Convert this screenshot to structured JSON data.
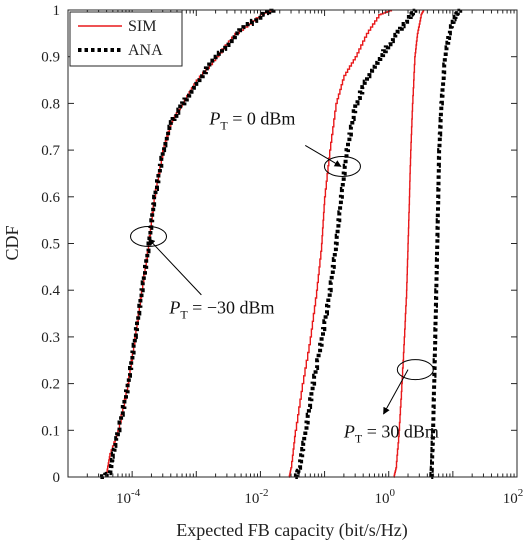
{
  "chart_data": {
    "type": "line",
    "xlabel": "Expected FB capacity (bit/s/Hz)",
    "ylabel": "CDF",
    "xscale": "log",
    "xlim": [
      1e-05,
      100
    ],
    "ylim": [
      0,
      1
    ],
    "grid": false,
    "legend_position": "top-left",
    "xticks": [
      {
        "value": 0.0001,
        "base": "10",
        "exp": "-4"
      },
      {
        "value": 0.01,
        "base": "10",
        "exp": "-2"
      },
      {
        "value": 1,
        "base": "10",
        "exp": "0"
      },
      {
        "value": 100,
        "base": "10",
        "exp": "2"
      }
    ],
    "yticks": [
      "0",
      "0.1",
      "0.2",
      "0.3",
      "0.4",
      "0.5",
      "0.6",
      "0.7",
      "0.8",
      "0.9",
      "1"
    ],
    "series": [
      {
        "name": "SIM",
        "color": "#e8191b",
        "style": "solid",
        "group": "PT = -30 dBm",
        "points": [
          [
            4e-05,
            0
          ],
          [
            4e-05,
            0.01
          ],
          [
            4.5e-05,
            0.05
          ],
          [
            6e-05,
            0.1
          ],
          [
            8.5e-05,
            0.2
          ],
          [
            0.00011,
            0.3
          ],
          [
            0.00014,
            0.4
          ],
          [
            0.00018,
            0.5
          ],
          [
            0.00022,
            0.6
          ],
          [
            0.0003,
            0.7
          ],
          [
            0.0004,
            0.76
          ],
          [
            0.0006,
            0.8
          ],
          [
            0.001,
            0.85
          ],
          [
            0.002,
            0.9
          ],
          [
            0.004,
            0.95
          ],
          [
            0.01,
            0.99
          ],
          [
            0.015,
            1
          ]
        ]
      },
      {
        "name": "ANA",
        "color": "#000000",
        "style": "dotted",
        "group": "PT = -30 dBm",
        "points": [
          [
            3.2e-05,
            0
          ],
          [
            4.5e-05,
            0.01
          ],
          [
            5e-05,
            0.05
          ],
          [
            6e-05,
            0.1
          ],
          [
            8.5e-05,
            0.2
          ],
          [
            0.00011,
            0.3
          ],
          [
            0.00014,
            0.4
          ],
          [
            0.00018,
            0.5
          ],
          [
            0.00022,
            0.6
          ],
          [
            0.0003,
            0.7
          ],
          [
            0.0004,
            0.76
          ],
          [
            0.0006,
            0.8
          ],
          [
            0.001,
            0.85
          ],
          [
            0.002,
            0.9
          ],
          [
            0.004,
            0.95
          ],
          [
            0.01,
            0.99
          ],
          [
            0.016,
            1
          ]
        ]
      },
      {
        "name": "SIM",
        "color": "#e8191b",
        "style": "solid",
        "group": "PT = 0 dBm",
        "points": [
          [
            0.028,
            0
          ],
          [
            0.03,
            0.02
          ],
          [
            0.035,
            0.1
          ],
          [
            0.045,
            0.2
          ],
          [
            0.06,
            0.3
          ],
          [
            0.075,
            0.4
          ],
          [
            0.09,
            0.5
          ],
          [
            0.1,
            0.6
          ],
          [
            0.12,
            0.7
          ],
          [
            0.15,
            0.8
          ],
          [
            0.2,
            0.86
          ],
          [
            0.3,
            0.9
          ],
          [
            0.45,
            0.95
          ],
          [
            0.7,
            0.99
          ],
          [
            1.1,
            1
          ]
        ]
      },
      {
        "name": "ANA",
        "color": "#000000",
        "style": "dotted",
        "group": "PT = 0 dBm",
        "points": [
          [
            0.035,
            0
          ],
          [
            0.04,
            0.02
          ],
          [
            0.05,
            0.1
          ],
          [
            0.065,
            0.2
          ],
          [
            0.09,
            0.3
          ],
          [
            0.12,
            0.4
          ],
          [
            0.15,
            0.5
          ],
          [
            0.18,
            0.6
          ],
          [
            0.22,
            0.7
          ],
          [
            0.3,
            0.8
          ],
          [
            0.5,
            0.87
          ],
          [
            0.9,
            0.92
          ],
          [
            1.5,
            0.96
          ],
          [
            2.2,
            0.99
          ],
          [
            2.6,
            1
          ]
        ]
      },
      {
        "name": "SIM",
        "color": "#e8191b",
        "style": "solid",
        "group": "PT = 30 dBm",
        "points": [
          [
            1.2,
            0
          ],
          [
            1.3,
            0.02
          ],
          [
            1.45,
            0.1
          ],
          [
            1.6,
            0.2
          ],
          [
            1.75,
            0.3
          ],
          [
            1.9,
            0.4
          ],
          [
            2,
            0.5
          ],
          [
            2.1,
            0.6
          ],
          [
            2.2,
            0.7
          ],
          [
            2.35,
            0.8
          ],
          [
            2.55,
            0.9
          ],
          [
            2.8,
            0.95
          ],
          [
            3.2,
            0.99
          ],
          [
            3.5,
            1
          ]
        ]
      },
      {
        "name": "ANA",
        "color": "#000000",
        "style": "dotted",
        "group": "PT = 30 dBm",
        "points": [
          [
            4.6,
            0
          ],
          [
            4.7,
            0.02
          ],
          [
            4.9,
            0.1
          ],
          [
            5.1,
            0.2
          ],
          [
            5.3,
            0.3
          ],
          [
            5.5,
            0.4
          ],
          [
            5.7,
            0.5
          ],
          [
            5.9,
            0.6
          ],
          [
            6.1,
            0.7
          ],
          [
            6.6,
            0.8
          ],
          [
            7.5,
            0.9
          ],
          [
            9,
            0.96
          ],
          [
            11,
            0.99
          ],
          [
            13,
            1
          ]
        ]
      }
    ],
    "legend": [
      {
        "label": "SIM",
        "color": "#e8191b",
        "style": "solid"
      },
      {
        "label": "ANA",
        "color": "#000000",
        "style": "dotted"
      }
    ],
    "annotations": [
      {
        "sub": "T",
        "text": " = 0 dBm",
        "label_x": 0.0016,
        "label_y": 0.755,
        "arrow_from": [
          0.05,
          0.71
        ],
        "arrow_to": [
          0.18,
          0.665
        ],
        "ellipse": [
          0.19,
          0.665
        ]
      },
      {
        "sub": "T",
        "text": " = −30 dBm",
        "label_x": 0.00038,
        "label_y": 0.35,
        "arrow_from": [
          0.0012,
          0.39
        ],
        "arrow_to": [
          0.00018,
          0.51
        ],
        "ellipse": [
          0.00018,
          0.515
        ],
        "arrow_at": "to"
      },
      {
        "sub": "T",
        "text": " = 30 dBm",
        "label_x": 0.2,
        "label_y": 0.085,
        "arrow_from": [
          0.83,
          0.135
        ],
        "arrow_to": [
          2.0,
          0.23
        ],
        "ellipse": [
          2.6,
          0.23
        ],
        "arrow_at": "from"
      }
    ]
  }
}
